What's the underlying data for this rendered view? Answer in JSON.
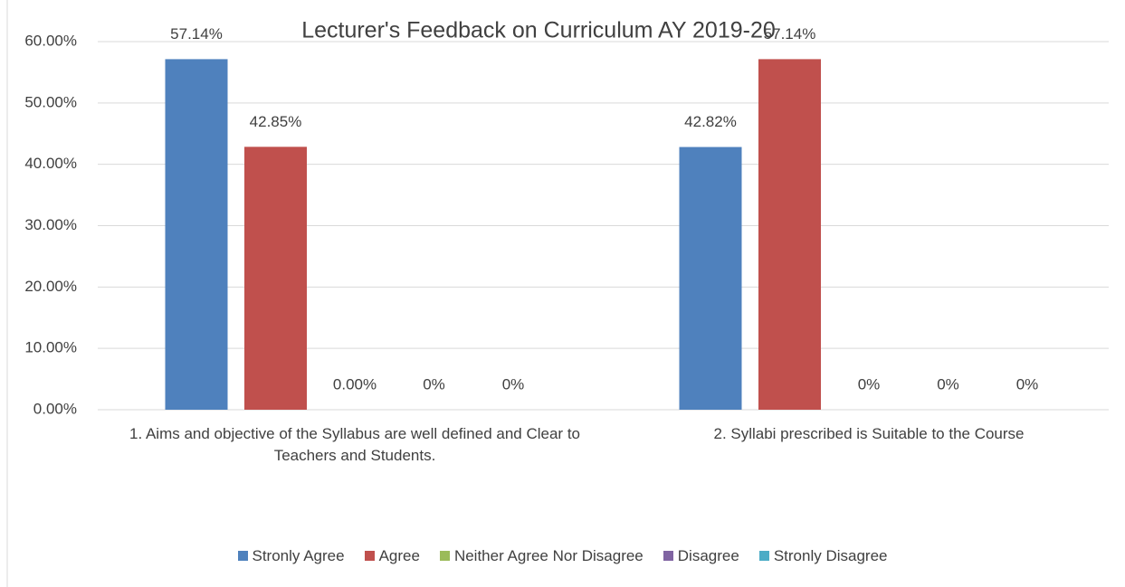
{
  "chart_data": {
    "type": "bar",
    "title": "Lecturer's Feedback on Curriculum AY 2019-20",
    "categories": [
      "1. Aims and objective of the Syllabus are well defined and Clear to Teachers and Students.",
      "2. Syllabi prescribed is Suitable to the Course"
    ],
    "series": [
      {
        "name": "Stronly Agree",
        "color": "#4f81bd",
        "values": [
          57.14,
          42.82
        ],
        "value_labels": [
          "57.14%",
          "42.82%"
        ]
      },
      {
        "name": "Agree",
        "color": "#c0504d",
        "values": [
          42.85,
          57.14
        ],
        "value_labels": [
          "42.85%",
          "57.14%"
        ]
      },
      {
        "name": "Neither Agree Nor Disagree",
        "color": "#9bbb59",
        "values": [
          0,
          0
        ],
        "value_labels": [
          "0.00%",
          "0%"
        ]
      },
      {
        "name": "Disagree",
        "color": "#8064a2",
        "values": [
          0,
          0
        ],
        "value_labels": [
          "0%",
          "0%"
        ]
      },
      {
        "name": "Stronly Disagree",
        "color": "#4bacc6",
        "values": [
          0,
          0
        ],
        "value_labels": [
          "0%",
          "0%"
        ]
      }
    ],
    "ylim": [
      0,
      60
    ],
    "yticks": [
      {
        "value": 0,
        "label": "0.00%"
      },
      {
        "value": 10,
        "label": "10.00%"
      },
      {
        "value": 20,
        "label": "20.00%"
      },
      {
        "value": 30,
        "label": "30.00%"
      },
      {
        "value": 40,
        "label": "40.00%"
      },
      {
        "value": 50,
        "label": "50.00%"
      },
      {
        "value": 60,
        "label": "60.00%"
      }
    ],
    "grid": true,
    "legend": "bottom"
  }
}
